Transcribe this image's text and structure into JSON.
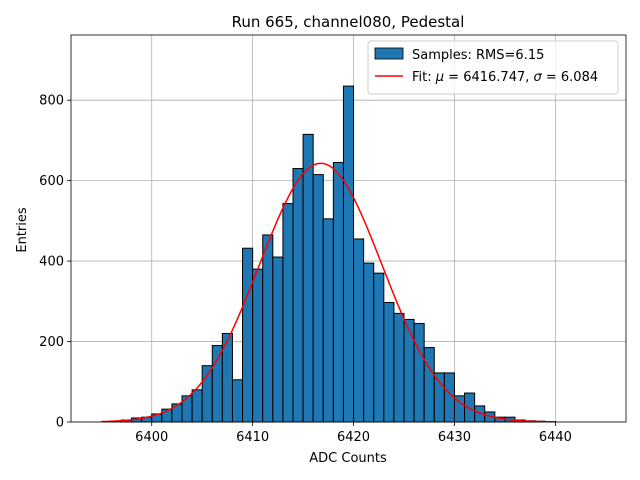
{
  "chart_data": {
    "type": "bar",
    "title": "Run 665, channel080, Pedestal",
    "xlabel": "ADC Counts",
    "ylabel": "Entries",
    "xlim": [
      6392,
      6447
    ],
    "ylim": [
      0,
      962
    ],
    "x_ticks": [
      6400,
      6410,
      6420,
      6430,
      6440
    ],
    "y_ticks": [
      0,
      200,
      400,
      600,
      800
    ],
    "grid": true,
    "histogram": {
      "name": "Samples: RMS=6.15",
      "color": "#1f77b4",
      "bin_width": 1,
      "bin_starts": [
        6396,
        6397,
        6398,
        6399,
        6400,
        6401,
        6402,
        6403,
        6404,
        6405,
        6406,
        6407,
        6408,
        6409,
        6410,
        6411,
        6412,
        6413,
        6414,
        6415,
        6416,
        6417,
        6418,
        6419,
        6420,
        6421,
        6422,
        6423,
        6424,
        6425,
        6426,
        6427,
        6428,
        6429,
        6430,
        6431,
        6432,
        6433,
        6434,
        6435,
        6436,
        6437,
        6438,
        6439
      ],
      "counts": [
        2,
        5,
        10,
        12,
        20,
        32,
        45,
        65,
        80,
        140,
        190,
        220,
        105,
        432,
        380,
        465,
        410,
        543,
        630,
        715,
        615,
        505,
        645,
        835,
        455,
        395,
        370,
        297,
        270,
        255,
        245,
        185,
        122,
        122,
        65,
        72,
        40,
        25,
        12,
        12,
        5,
        3,
        2,
        1
      ]
    },
    "fit": {
      "name": "Fit",
      "mu": 6416.747,
      "sigma": 6.084,
      "color": "#ff0000",
      "x_range": [
        6395,
        6440
      ],
      "peak": 643
    },
    "legend": {
      "position": "top-right",
      "hist_label": "Samples: RMS=6.15",
      "fit_label_prefix": "Fit: ",
      "mu_symbol": "μ",
      "mu_text": " = 6416.747, ",
      "sigma_symbol": "σ",
      "sigma_text": " = 6.084"
    }
  }
}
